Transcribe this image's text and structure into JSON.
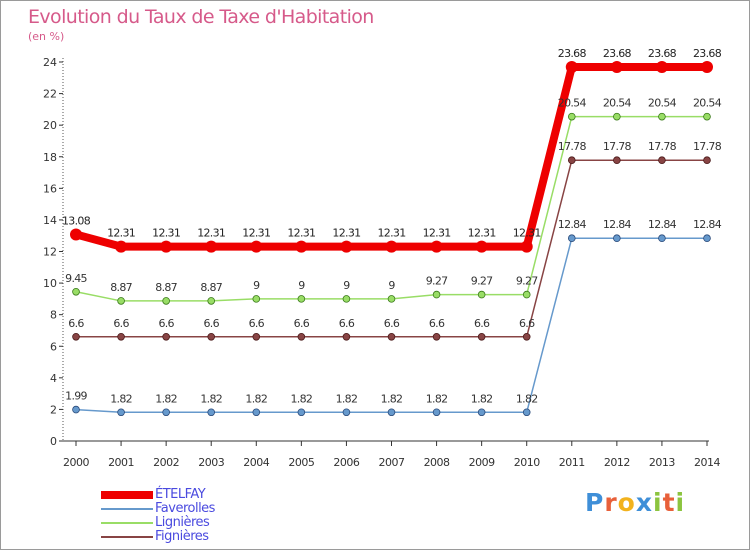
{
  "chart_data": {
    "type": "line",
    "title": "Evolution du Taux de Taxe d'Habitation",
    "ylabel": "(en %)",
    "x": [
      "2000",
      "2001",
      "2002",
      "2003",
      "2004",
      "2005",
      "2006",
      "2007",
      "2008",
      "2009",
      "2010",
      "2011",
      "2012",
      "2013",
      "2014"
    ],
    "ylim": [
      0,
      24
    ],
    "yticks": [
      0,
      2,
      4,
      6,
      8,
      10,
      12,
      14,
      16,
      18,
      20,
      22,
      24
    ],
    "grid": false,
    "legend": "bottom-left",
    "series": [
      {
        "name": "ÉTELFAY",
        "color": "#ee0000",
        "values": [
          13.08,
          12.31,
          12.31,
          12.31,
          12.31,
          12.31,
          12.31,
          12.31,
          12.31,
          12.31,
          12.31,
          23.68,
          23.68,
          23.68,
          23.68
        ],
        "labels": [
          "13.08",
          "12.31",
          "12.31",
          "12.31",
          "12.31",
          "12.31",
          "12.31",
          "12.31",
          "12.31",
          "12.31",
          "12.31",
          "23.68",
          "23.68",
          "23.68",
          "23.68"
        ]
      },
      {
        "name": "Faverolles",
        "color": "#6699cc",
        "values": [
          1.99,
          1.82,
          1.82,
          1.82,
          1.82,
          1.82,
          1.82,
          1.82,
          1.82,
          1.82,
          1.82,
          12.84,
          12.84,
          12.84,
          12.84
        ],
        "labels": [
          "1.99",
          "1.82",
          "1.82",
          "1.82",
          "1.82",
          "1.82",
          "1.82",
          "1.82",
          "1.82",
          "1.82",
          "1.82",
          "12.84",
          "12.84",
          "12.84",
          "12.84"
        ]
      },
      {
        "name": "Lignières",
        "color": "#99dd66",
        "values": [
          9.45,
          8.87,
          8.87,
          8.87,
          9,
          9,
          9,
          9,
          9.27,
          9.27,
          9.27,
          20.54,
          20.54,
          20.54,
          20.54
        ],
        "labels": [
          "9.45",
          "8.87",
          "8.87",
          "8.87",
          "9",
          "9",
          "9",
          "9",
          "9.27",
          "9.27",
          "9.27",
          "20.54",
          "20.54",
          "20.54",
          "20.54"
        ]
      },
      {
        "name": "Fignières",
        "color": "#884444",
        "values": [
          6.6,
          6.6,
          6.6,
          6.6,
          6.6,
          6.6,
          6.6,
          6.6,
          6.6,
          6.6,
          6.6,
          17.78,
          17.78,
          17.78,
          17.78
        ],
        "labels": [
          "6.6",
          "6.6",
          "6.6",
          "6.6",
          "6.6",
          "6.6",
          "6.6",
          "6.6",
          "6.6",
          "6.6",
          "6.6",
          "17.78",
          "17.78",
          "17.78",
          "17.78"
        ]
      }
    ]
  },
  "logo": {
    "text": "Proxiti",
    "colors": [
      "#3f8fd8",
      "#e8603a",
      "#f2b21d",
      "#3f8fd8",
      "#8cc43f",
      "#e8603a",
      "#8cc43f"
    ]
  }
}
